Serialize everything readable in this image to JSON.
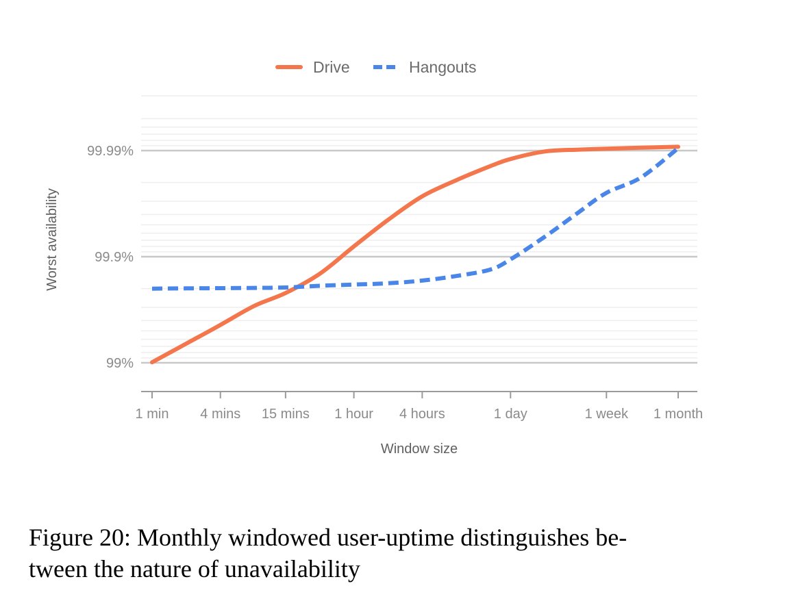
{
  "chart_data": {
    "type": "line",
    "title": "",
    "xlabel": "Window size",
    "ylabel": "Worst availability",
    "y_scale": "log-unavailability",
    "ylim": [
      "99%",
      "99.999%"
    ],
    "x_ticks": [
      "1 min",
      "4 mins",
      "15 mins",
      "1 hour",
      "4 hours",
      "1 day",
      "1 week",
      "1 month"
    ],
    "y_ticks": [
      "99%",
      "99.9%",
      "99.99%"
    ],
    "grid": true,
    "legend_position": "top",
    "series": [
      {
        "name": "Drive",
        "color": "#f4764c",
        "style": "solid",
        "x": [
          "1 min",
          "2 mins",
          "4 mins",
          "8 mins",
          "15 mins",
          "30 mins",
          "1 hour",
          "2 hours",
          "4 hours",
          "8 hours",
          "16 hours",
          "1 day",
          "2 days",
          "4 days",
          "1 week",
          "2 weeks",
          "1 month"
        ],
        "y": [
          99.01,
          99.34,
          99.56,
          99.71,
          99.78,
          99.855,
          99.92,
          99.955,
          99.973,
          99.981,
          99.986,
          99.988,
          99.9898,
          99.9902,
          99.9904,
          99.9906,
          99.9908
        ]
      },
      {
        "name": "Hangouts",
        "color": "#4a86e8",
        "style": "dashed",
        "x": [
          "1 min",
          "2 mins",
          "4 mins",
          "8 mins",
          "15 mins",
          "30 mins",
          "1 hour",
          "2 hours",
          "4 hours",
          "8 hours",
          "16 hours",
          "1 day",
          "2 days",
          "4 days",
          "1 week",
          "2 weeks",
          "1 month"
        ],
        "y": [
          99.8,
          99.801,
          99.802,
          99.803,
          99.805,
          99.812,
          99.817,
          99.822,
          99.832,
          99.848,
          99.868,
          99.894,
          99.935,
          99.962,
          99.975,
          99.982,
          99.9905
        ]
      }
    ]
  },
  "colors": {
    "drive": "#f4764c",
    "hangouts": "#4a86e8",
    "grid_major": "#c8c8c8",
    "grid_minor": "#eeeeee",
    "axis": "#9a9a9a"
  },
  "caption": {
    "line1": "Figure 20: Monthly windowed user-uptime distinguishes be-",
    "line2": "tween the nature of unavailability"
  }
}
